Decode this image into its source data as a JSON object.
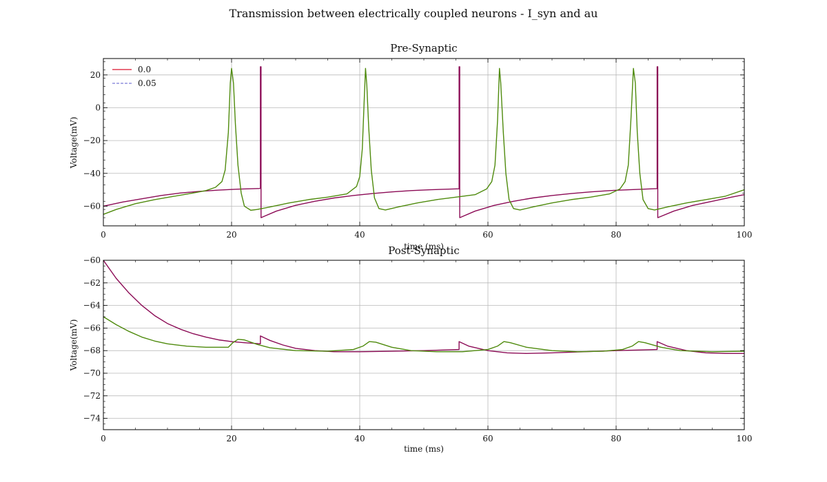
{
  "figure": {
    "suptitle": "Transmission between electrically coupled neurons - I_syn and au"
  },
  "colors": {
    "line_a": "#8b0a55",
    "line_b": "#d9122a",
    "line_c": "#7b7bd6",
    "line_d": "#4e8a0c",
    "grid": "#b9b9b9",
    "axis": "#000000"
  },
  "legend": {
    "placement": "upper-left",
    "entries": [
      {
        "label": "0.0",
        "color": "#d9122a",
        "style": "solid"
      },
      {
        "label": "0.05",
        "color": "#7b7bd6",
        "style": "dashed"
      }
    ]
  },
  "chart_data": [
    {
      "type": "line",
      "title": "Pre-Synaptic",
      "xlabel": "time (ms)",
      "ylabel": "Voltage(mV)",
      "xlim": [
        0,
        100
      ],
      "ylim": [
        -72,
        30
      ],
      "xticks": [
        0,
        20,
        40,
        60,
        80,
        100
      ],
      "yticks": [
        -60,
        -40,
        -20,
        0,
        20
      ],
      "grid": true,
      "series": [
        {
          "color": "#8b0a55",
          "style": "solid",
          "points": [
            [
              0,
              -60
            ],
            [
              3,
              -57.5
            ],
            [
              6,
              -55.5
            ],
            [
              9,
              -53.5
            ],
            [
              12,
              -52
            ],
            [
              15,
              -51
            ],
            [
              18,
              -50.2
            ],
            [
              21,
              -49.6
            ],
            [
              24.5,
              -49.2
            ],
            [
              24.5,
              25
            ],
            [
              24.6,
              25
            ],
            [
              24.6,
              -67
            ],
            [
              27,
              -63
            ],
            [
              30,
              -59.5
            ],
            [
              33,
              -57
            ],
            [
              36,
              -55
            ],
            [
              39,
              -53.5
            ],
            [
              42,
              -52.3
            ],
            [
              45,
              -51.3
            ],
            [
              48,
              -50.5
            ],
            [
              51,
              -50
            ],
            [
              55.5,
              -49.4
            ],
            [
              55.5,
              25
            ],
            [
              55.6,
              25
            ],
            [
              55.6,
              -67
            ],
            [
              58,
              -63
            ],
            [
              61,
              -59.5
            ],
            [
              64,
              -57
            ],
            [
              67,
              -55
            ],
            [
              70,
              -53.5
            ],
            [
              73,
              -52.3
            ],
            [
              76,
              -51.3
            ],
            [
              79,
              -50.5
            ],
            [
              82,
              -50
            ],
            [
              86.4,
              -49.3
            ],
            [
              86.4,
              25
            ],
            [
              86.5,
              25
            ],
            [
              86.5,
              -67
            ],
            [
              89,
              -63
            ],
            [
              92,
              -59.5
            ],
            [
              95,
              -57
            ],
            [
              98,
              -54.5
            ],
            [
              100,
              -53
            ]
          ]
        },
        {
          "color": "#4e8a0c",
          "style": "solid",
          "points": [
            [
              0,
              -65
            ],
            [
              2,
              -62
            ],
            [
              5,
              -58.5
            ],
            [
              8,
              -56
            ],
            [
              11,
              -54
            ],
            [
              14,
              -52
            ],
            [
              16,
              -50.5
            ],
            [
              17.5,
              -48.5
            ],
            [
              18.5,
              -45
            ],
            [
              19,
              -38
            ],
            [
              19.5,
              -15
            ],
            [
              19.8,
              15
            ],
            [
              20,
              24
            ],
            [
              20.3,
              15
            ],
            [
              20.6,
              -10
            ],
            [
              21,
              -35
            ],
            [
              21.5,
              -52
            ],
            [
              22,
              -60
            ],
            [
              23,
              -62.5
            ],
            [
              24,
              -62
            ],
            [
              26,
              -60.5
            ],
            [
              29,
              -58
            ],
            [
              32,
              -56
            ],
            [
              35,
              -54.5
            ],
            [
              38,
              -52.5
            ],
            [
              39.5,
              -48
            ],
            [
              40,
              -42
            ],
            [
              40.4,
              -25
            ],
            [
              40.7,
              5
            ],
            [
              40.9,
              24
            ],
            [
              41.1,
              14
            ],
            [
              41.4,
              -12
            ],
            [
              41.8,
              -38
            ],
            [
              42.3,
              -55
            ],
            [
              43,
              -61.5
            ],
            [
              44,
              -62.3
            ],
            [
              46,
              -60.5
            ],
            [
              49,
              -58
            ],
            [
              52,
              -56
            ],
            [
              55,
              -54.5
            ],
            [
              58,
              -53
            ],
            [
              59.8,
              -49.5
            ],
            [
              60.6,
              -45
            ],
            [
              61.1,
              -35
            ],
            [
              61.5,
              -8
            ],
            [
              61.8,
              24
            ],
            [
              62,
              15
            ],
            [
              62.4,
              -15
            ],
            [
              62.8,
              -40
            ],
            [
              63.3,
              -56
            ],
            [
              64,
              -61.5
            ],
            [
              65,
              -62.3
            ],
            [
              67,
              -60.5
            ],
            [
              70,
              -58
            ],
            [
              73,
              -56
            ],
            [
              76,
              -54.5
            ],
            [
              79,
              -52.5
            ],
            [
              80.6,
              -49.5
            ],
            [
              81.4,
              -45
            ],
            [
              81.9,
              -35
            ],
            [
              82.3,
              -8
            ],
            [
              82.7,
              24
            ],
            [
              83,
              15
            ],
            [
              83.3,
              -15
            ],
            [
              83.7,
              -40
            ],
            [
              84.2,
              -56
            ],
            [
              85,
              -61.5
            ],
            [
              86,
              -62.3
            ],
            [
              88,
              -60.5
            ],
            [
              91,
              -58
            ],
            [
              94,
              -56
            ],
            [
              97,
              -54
            ],
            [
              100,
              -50
            ]
          ]
        }
      ]
    },
    {
      "type": "line",
      "title": "Post-Synaptic",
      "xlabel": "time (ms)",
      "ylabel": "Voltage(mV)",
      "xlim": [
        0,
        100
      ],
      "ylim": [
        -75,
        -60
      ],
      "xticks": [
        0,
        20,
        40,
        60,
        80,
        100
      ],
      "yticks": [
        -74,
        -72,
        -70,
        -68,
        -66,
        -64,
        -62,
        -60
      ],
      "grid": true,
      "series": [
        {
          "color": "#8b0a55",
          "style": "solid",
          "points": [
            [
              0,
              -60
            ],
            [
              2,
              -61.6
            ],
            [
              4,
              -62.9
            ],
            [
              6,
              -64
            ],
            [
              8,
              -64.9
            ],
            [
              10,
              -65.6
            ],
            [
              12,
              -66.1
            ],
            [
              14,
              -66.5
            ],
            [
              16,
              -66.8
            ],
            [
              18,
              -67.05
            ],
            [
              20,
              -67.2
            ],
            [
              22,
              -67.3
            ],
            [
              24.5,
              -67.4
            ],
            [
              24.5,
              -66.7
            ],
            [
              26,
              -67.1
            ],
            [
              28,
              -67.5
            ],
            [
              30,
              -67.8
            ],
            [
              33,
              -68
            ],
            [
              36,
              -68.1
            ],
            [
              40,
              -68.1
            ],
            [
              45,
              -68.05
            ],
            [
              50,
              -68
            ],
            [
              55.5,
              -67.9
            ],
            [
              55.5,
              -67.2
            ],
            [
              57,
              -67.6
            ],
            [
              60,
              -68
            ],
            [
              63,
              -68.2
            ],
            [
              66,
              -68.25
            ],
            [
              70,
              -68.2
            ],
            [
              75,
              -68.1
            ],
            [
              80,
              -68
            ],
            [
              86.4,
              -67.9
            ],
            [
              86.4,
              -67.2
            ],
            [
              88,
              -67.6
            ],
            [
              91,
              -68
            ],
            [
              94,
              -68.2
            ],
            [
              97,
              -68.25
            ],
            [
              100,
              -68.25
            ]
          ]
        },
        {
          "color": "#4e8a0c",
          "style": "solid",
          "points": [
            [
              0,
              -65
            ],
            [
              2,
              -65.7
            ],
            [
              4,
              -66.3
            ],
            [
              6,
              -66.8
            ],
            [
              8,
              -67.15
            ],
            [
              10,
              -67.4
            ],
            [
              13,
              -67.6
            ],
            [
              16,
              -67.7
            ],
            [
              19.5,
              -67.7
            ],
            [
              20.2,
              -67.3
            ],
            [
              21,
              -67
            ],
            [
              22,
              -67.05
            ],
            [
              24,
              -67.45
            ],
            [
              26,
              -67.75
            ],
            [
              30,
              -68
            ],
            [
              35,
              -68.05
            ],
            [
              39,
              -67.9
            ],
            [
              40.5,
              -67.6
            ],
            [
              41.5,
              -67.2
            ],
            [
              42.5,
              -67.25
            ],
            [
              45,
              -67.7
            ],
            [
              48,
              -68
            ],
            [
              52,
              -68.1
            ],
            [
              56,
              -68.1
            ],
            [
              60,
              -67.9
            ],
            [
              61.5,
              -67.6
            ],
            [
              62.5,
              -67.2
            ],
            [
              63.5,
              -67.3
            ],
            [
              66,
              -67.7
            ],
            [
              70,
              -68
            ],
            [
              74,
              -68.1
            ],
            [
              78,
              -68.05
            ],
            [
              81,
              -67.9
            ],
            [
              82.5,
              -67.6
            ],
            [
              83.5,
              -67.2
            ],
            [
              84.5,
              -67.3
            ],
            [
              87,
              -67.7
            ],
            [
              90,
              -68
            ],
            [
              95,
              -68.1
            ],
            [
              100,
              -68.05
            ]
          ]
        }
      ]
    }
  ]
}
